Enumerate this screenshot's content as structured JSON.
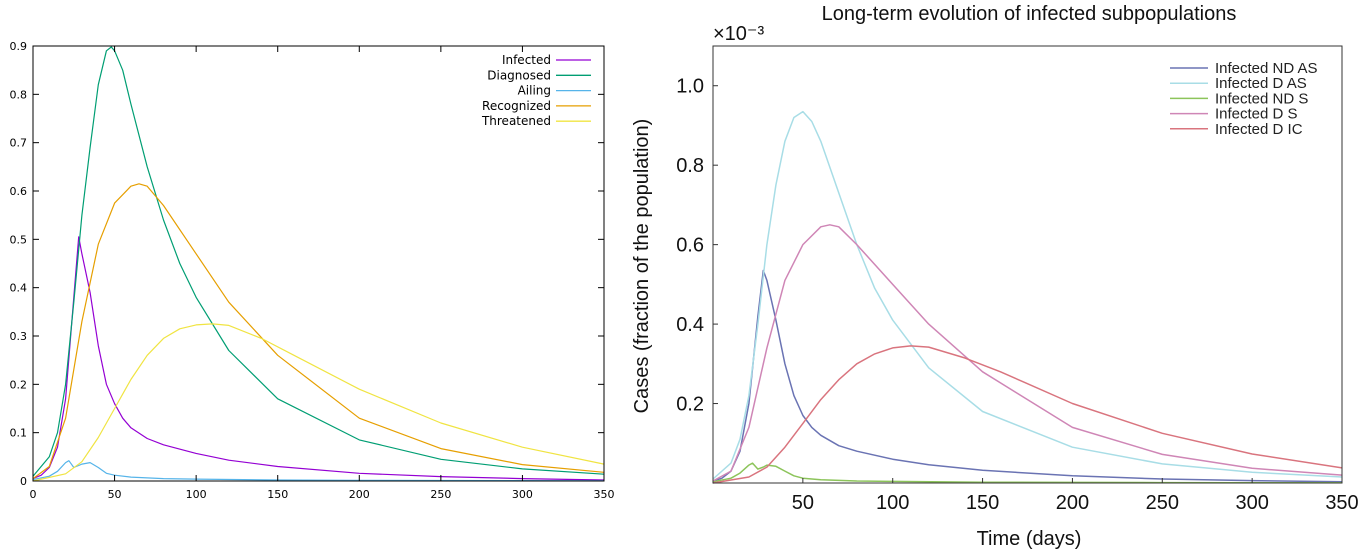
{
  "chart_data": [
    {
      "type": "line",
      "title": "",
      "xlabel": "",
      "ylabel": "",
      "xlim": [
        0,
        350
      ],
      "ylim": [
        0,
        0.9
      ],
      "xticks": [
        "0",
        "50",
        "100",
        "150",
        "200",
        "250",
        "300",
        "350"
      ],
      "yticks": [
        "0",
        "0.1",
        "0.2",
        "0.3",
        "0.4",
        "0.5",
        "0.6",
        "0.7",
        "0.8",
        "0.9"
      ],
      "grid": false,
      "legend_position": "top-right",
      "series": [
        {
          "name": "Infected",
          "color": "#9400d3",
          "x": [
            0,
            5,
            10,
            15,
            20,
            25,
            28,
            30,
            35,
            40,
            45,
            50,
            55,
            60,
            70,
            80,
            100,
            120,
            150,
            200,
            250,
            300,
            350
          ],
          "y": [
            0.005,
            0.012,
            0.028,
            0.07,
            0.17,
            0.38,
            0.505,
            0.47,
            0.39,
            0.28,
            0.2,
            0.16,
            0.13,
            0.11,
            0.088,
            0.075,
            0.057,
            0.043,
            0.03,
            0.016,
            0.009,
            0.005,
            0.002
          ]
        },
        {
          "name": "Diagnosed",
          "color": "#009e73",
          "x": [
            0,
            10,
            15,
            20,
            25,
            30,
            35,
            40,
            45,
            48,
            50,
            55,
            60,
            70,
            80,
            90,
            100,
            120,
            150,
            200,
            250,
            300,
            350
          ],
          "y": [
            0.01,
            0.05,
            0.1,
            0.2,
            0.37,
            0.55,
            0.69,
            0.82,
            0.89,
            0.898,
            0.89,
            0.85,
            0.78,
            0.65,
            0.54,
            0.45,
            0.38,
            0.27,
            0.17,
            0.085,
            0.045,
            0.025,
            0.014
          ]
        },
        {
          "name": "Ailing",
          "color": "#56b4e9",
          "x": [
            0,
            10,
            15,
            20,
            22,
            25,
            28,
            30,
            35,
            40,
            45,
            50,
            60,
            80,
            100,
            150,
            200,
            250,
            300,
            350
          ],
          "y": [
            0.003,
            0.01,
            0.02,
            0.038,
            0.042,
            0.028,
            0.032,
            0.035,
            0.038,
            0.028,
            0.016,
            0.012,
            0.008,
            0.005,
            0.004,
            0.002,
            0.0015,
            0.001,
            0.0008,
            0.0006
          ]
        },
        {
          "name": "Recognized",
          "color": "#e69f00",
          "x": [
            0,
            10,
            20,
            30,
            40,
            50,
            60,
            65,
            70,
            80,
            100,
            120,
            150,
            200,
            250,
            300,
            350
          ],
          "y": [
            0.005,
            0.03,
            0.13,
            0.33,
            0.49,
            0.575,
            0.61,
            0.615,
            0.61,
            0.57,
            0.47,
            0.37,
            0.26,
            0.13,
            0.067,
            0.034,
            0.018
          ]
        },
        {
          "name": "Threatened",
          "color": "#f0e442",
          "x": [
            0,
            20,
            30,
            40,
            50,
            60,
            70,
            80,
            90,
            100,
            110,
            120,
            140,
            160,
            200,
            250,
            300,
            350
          ],
          "y": [
            0.0,
            0.015,
            0.04,
            0.09,
            0.15,
            0.21,
            0.26,
            0.295,
            0.315,
            0.323,
            0.325,
            0.322,
            0.295,
            0.26,
            0.19,
            0.12,
            0.07,
            0.035
          ]
        }
      ]
    },
    {
      "type": "line",
      "title": "Long-term evolution of infected subpopulations",
      "xlabel": "Time (days)",
      "ylabel": "Cases (fraction of the population)",
      "multiplier": "×10⁻³",
      "xlim": [
        0,
        350
      ],
      "ylim": [
        0,
        1.1
      ],
      "xticks": [
        {
          "value": 50,
          "label": "50"
        },
        {
          "value": 100,
          "label": "100"
        },
        {
          "value": 150,
          "label": "150"
        },
        {
          "value": 200,
          "label": "200"
        },
        {
          "value": 250,
          "label": "250"
        },
        {
          "value": 300,
          "label": "300"
        },
        {
          "value": 350,
          "label": "350"
        }
      ],
      "yticks": [
        {
          "value": 0.2,
          "label": "0.2"
        },
        {
          "value": 0.4,
          "label": "0.4"
        },
        {
          "value": 0.6,
          "label": "0.6"
        },
        {
          "value": 0.8,
          "label": "0.8"
        },
        {
          "value": 1.0,
          "label": "1.0"
        }
      ],
      "grid": false,
      "legend_position": "top-right",
      "series": [
        {
          "name": "Infected ND AS",
          "color": "#6a73b3",
          "x": [
            0,
            5,
            10,
            15,
            20,
            25,
            28,
            30,
            35,
            40,
            45,
            50,
            55,
            60,
            70,
            80,
            100,
            120,
            150,
            200,
            250,
            300,
            350
          ],
          "y": [
            0.005,
            0.012,
            0.03,
            0.08,
            0.2,
            0.42,
            0.535,
            0.51,
            0.41,
            0.3,
            0.22,
            0.17,
            0.14,
            0.12,
            0.094,
            0.08,
            0.06,
            0.046,
            0.032,
            0.018,
            0.01,
            0.006,
            0.003
          ]
        },
        {
          "name": "Infected D AS",
          "color": "#a8dde6",
          "x": [
            0,
            10,
            15,
            20,
            25,
            30,
            35,
            40,
            45,
            50,
            55,
            60,
            70,
            80,
            90,
            100,
            120,
            150,
            200,
            250,
            300,
            350
          ],
          "y": [
            0.01,
            0.05,
            0.11,
            0.22,
            0.4,
            0.6,
            0.75,
            0.86,
            0.92,
            0.935,
            0.91,
            0.86,
            0.73,
            0.6,
            0.49,
            0.41,
            0.29,
            0.18,
            0.09,
            0.048,
            0.027,
            0.015
          ]
        },
        {
          "name": "Infected ND S",
          "color": "#8cc45a",
          "x": [
            0,
            10,
            15,
            20,
            22,
            25,
            28,
            30,
            35,
            40,
            45,
            50,
            60,
            80,
            100,
            150,
            200,
            250,
            300,
            350
          ],
          "y": [
            0.003,
            0.012,
            0.025,
            0.045,
            0.05,
            0.035,
            0.04,
            0.045,
            0.042,
            0.03,
            0.018,
            0.012,
            0.008,
            0.005,
            0.004,
            0.002,
            0.0015,
            0.001,
            0.0008,
            0.0006
          ]
        },
        {
          "name": "Infected D S",
          "color": "#cf86b6",
          "x": [
            0,
            10,
            20,
            30,
            40,
            50,
            60,
            65,
            70,
            80,
            100,
            120,
            150,
            200,
            250,
            300,
            350
          ],
          "y": [
            0.005,
            0.03,
            0.14,
            0.34,
            0.51,
            0.6,
            0.645,
            0.65,
            0.645,
            0.6,
            0.5,
            0.4,
            0.28,
            0.14,
            0.072,
            0.037,
            0.02
          ]
        },
        {
          "name": "Infected D IC",
          "color": "#d9747e",
          "x": [
            0,
            20,
            30,
            40,
            50,
            60,
            70,
            80,
            90,
            100,
            110,
            120,
            140,
            160,
            200,
            250,
            300,
            350
          ],
          "y": [
            0.0,
            0.015,
            0.04,
            0.09,
            0.15,
            0.21,
            0.26,
            0.3,
            0.325,
            0.34,
            0.345,
            0.342,
            0.315,
            0.28,
            0.2,
            0.125,
            0.073,
            0.038
          ]
        }
      ]
    }
  ]
}
